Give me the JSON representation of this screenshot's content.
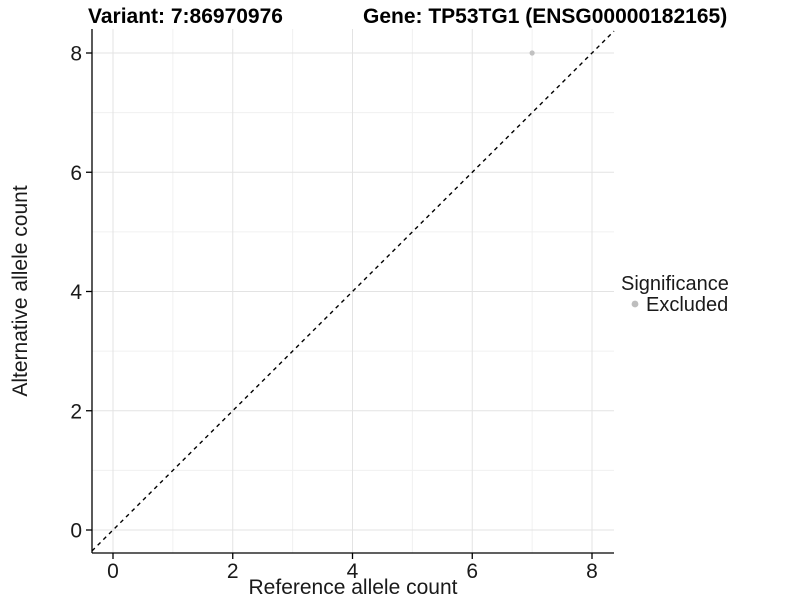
{
  "chart_data": {
    "type": "scatter",
    "title_left": "Variant: 7:86970976",
    "title_right": "Gene: TP53TG1 (ENSG00000182165)",
    "xlabel": "Reference allele count",
    "ylabel": "Alternative allele count",
    "xticks": [
      0,
      2,
      4,
      6,
      8
    ],
    "yticks": [
      0,
      2,
      4,
      6,
      8
    ],
    "minor_xticks": [
      1,
      3,
      5,
      7
    ],
    "minor_yticks": [
      1,
      3,
      5,
      7
    ],
    "xlim": [
      -0.35,
      8.37
    ],
    "ylim": [
      -0.39,
      8.4
    ],
    "grid": "major+minor",
    "points": [
      {
        "x": 7,
        "y": 8,
        "series": "Excluded"
      }
    ],
    "reference_line": {
      "type": "abline",
      "slope": 1,
      "intercept": 0,
      "linestyle": "dashed",
      "color": "#000000"
    },
    "legend": {
      "position": "right",
      "title": "Significance",
      "items": [
        {
          "label": "Excluded",
          "color": "#bebebe"
        }
      ]
    },
    "colors": {
      "point": "#c1c1c1",
      "grid_major": "#e3e3e3",
      "grid_minor": "#f0f0f0",
      "axis_line": "#000000",
      "text": "#1a1a1a"
    }
  }
}
